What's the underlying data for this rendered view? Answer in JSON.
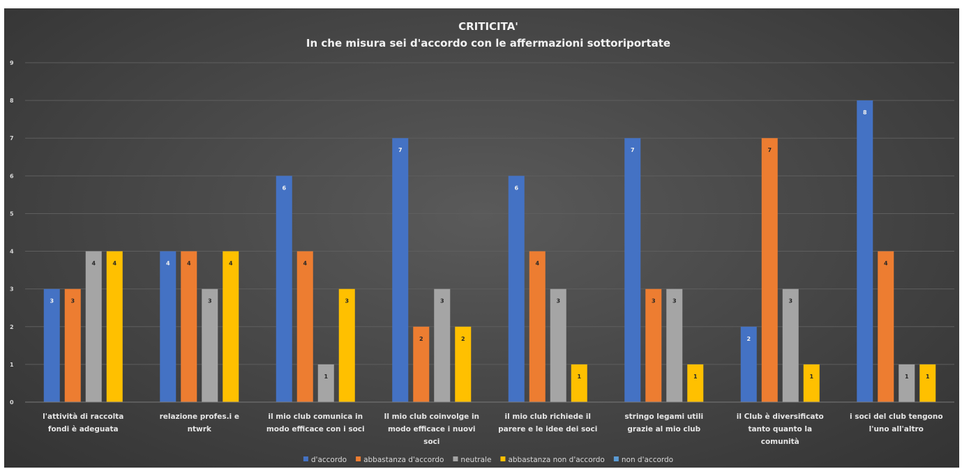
{
  "chart_data": {
    "type": "bar",
    "title": "CRITICITA'",
    "subtitle": "In che misura sei d'accordo con le  affermazioni sottoriportate",
    "xlabel": "",
    "ylabel": "",
    "ylim": [
      0,
      9
    ],
    "yticks": [
      0,
      1,
      2,
      3,
      4,
      5,
      6,
      7,
      8,
      9
    ],
    "grid": true,
    "legend_position": "bottom",
    "categories": [
      [
        "l'attività di raccolta",
        "fondi è adeguata"
      ],
      [
        "relazione profes.i e",
        "ntwrk"
      ],
      [
        "il mio club comunica in",
        "modo efficace con i soci"
      ],
      [
        "Il mio club coinvolge in",
        "modo efficace i nuovi",
        "soci"
      ],
      [
        "il mio club richiede il",
        "parere e le idee dei soci"
      ],
      [
        "stringo legami utili",
        "grazie al mio club"
      ],
      [
        "il Club è diversificato",
        "tanto quanto la",
        "comunità"
      ],
      [
        "i soci del club tengono",
        "l'uno all'altro"
      ]
    ],
    "series": [
      {
        "name": "d'accordo",
        "color": "#4472C4",
        "values": [
          3,
          4,
          6,
          7,
          6,
          7,
          2,
          8
        ]
      },
      {
        "name": "abbastanza d'accordo",
        "color": "#ED7D31",
        "values": [
          3,
          4,
          4,
          2,
          4,
          3,
          7,
          4
        ]
      },
      {
        "name": "neutrale",
        "color": "#A5A5A5",
        "values": [
          4,
          3,
          1,
          3,
          3,
          3,
          3,
          1
        ]
      },
      {
        "name": "abbastanza non d'accordo",
        "color": "#FFC000",
        "values": [
          4,
          4,
          3,
          2,
          1,
          1,
          1,
          1
        ]
      },
      {
        "name": "non d'accordo",
        "color": "#5B9BD5",
        "values": [
          null,
          null,
          null,
          null,
          null,
          null,
          null,
          null
        ]
      }
    ]
  }
}
